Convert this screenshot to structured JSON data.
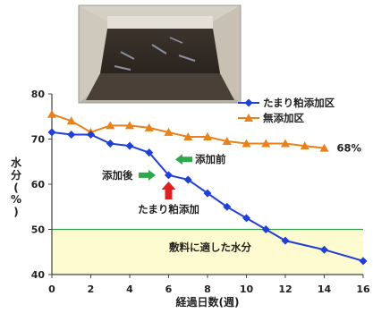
{
  "chart_data": {
    "type": "line",
    "xlabel": "経過日数(週)",
    "ylabel": [
      "水",
      "分",
      "(",
      "%",
      ")"
    ],
    "xlim": [
      0,
      16
    ],
    "ylim": [
      40,
      80
    ],
    "x_ticks": [
      "0",
      "2",
      "4",
      "6",
      "8",
      "10",
      "12",
      "14",
      "16"
    ],
    "y_ticks": [
      "40",
      "50",
      "60",
      "70",
      "80"
    ],
    "grid": false,
    "legend_position": "top-right",
    "series": [
      {
        "name": "たまり粕添加区",
        "color": "#1f3fd6",
        "marker": "diamond",
        "x": [
          0,
          1,
          2,
          3,
          4,
          5,
          6,
          7,
          8,
          9,
          10,
          11,
          12,
          14,
          16
        ],
        "y": [
          71.5,
          71.0,
          71.0,
          69.0,
          68.5,
          67.0,
          62.0,
          61.0,
          58.0,
          55.0,
          52.5,
          50.0,
          47.5,
          45.5,
          43.0
        ]
      },
      {
        "name": "無添加区",
        "color": "#e8811a",
        "marker": "triangle",
        "x": [
          0,
          1,
          2,
          3,
          4,
          5,
          6,
          7,
          8,
          9,
          10,
          11,
          12,
          13,
          14
        ],
        "y": [
          75.5,
          74.0,
          71.5,
          73.0,
          73.0,
          72.5,
          71.5,
          70.5,
          70.5,
          69.5,
          69.0,
          69.0,
          69.0,
          68.5,
          68.0
        ]
      }
    ],
    "highlight_band": {
      "y_min": 40,
      "y_max": 50,
      "color": "#fdfbcf",
      "border_color": "#3a9a4e",
      "label": "敷料に適した水分"
    },
    "annotations": {
      "end_label": "68%",
      "after_label": "添加後",
      "before_label": "添加前",
      "event_label": "たまり粕添加"
    }
  },
  "photo": {
    "description_icon": "compost-bin-photo-icon"
  }
}
